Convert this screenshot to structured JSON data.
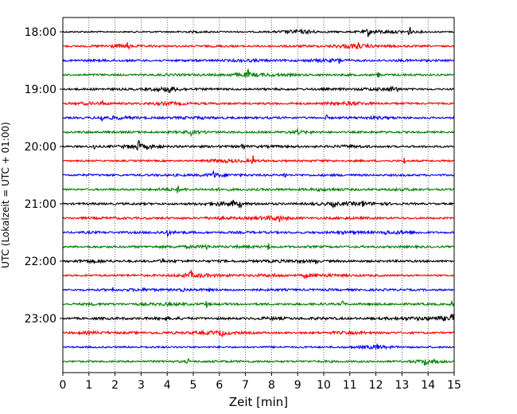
{
  "chart_data": {
    "type": "line",
    "title": "",
    "xlabel": "Zeit  [min]",
    "ylabel": "UTC (Lokalzeit = UTC + 01:00)",
    "xlim": [
      0,
      15
    ],
    "x_ticks": [
      "0",
      "1",
      "2",
      "3",
      "4",
      "5",
      "6",
      "7",
      "8",
      "9",
      "10",
      "11",
      "12",
      "13",
      "14",
      "15"
    ],
    "y_tick_labels": [
      "18:00",
      "19:00",
      "20:00",
      "21:00",
      "22:00",
      "23:00"
    ],
    "trace_interval_min": 15,
    "grid": "vertical dotted at each minute",
    "legend": "none",
    "color_cycle": [
      "#000000",
      "#ff0000",
      "#0000ff",
      "#008000"
    ],
    "series": [
      {
        "start": "18:00",
        "values": [
          0.12,
          0.15,
          0.1,
          0.14,
          0.12,
          0.2,
          0.14,
          0.12,
          0.15,
          0.4,
          0.18,
          0.14,
          0.35,
          0.25,
          0.15,
          0.12
        ],
        "spikes": [
          [
            9.5,
            0.5
          ],
          [
            11.7,
            0.7
          ],
          [
            13.3,
            1.0
          ]
        ]
      },
      {
        "start": "18:15",
        "values": [
          0.14,
          0.16,
          0.35,
          0.2,
          0.18,
          0.15,
          0.2,
          0.16,
          0.18,
          0.2,
          0.18,
          0.45,
          0.25,
          0.2,
          0.15,
          0.14
        ],
        "spikes": [
          [
            2.5,
            0.7
          ],
          [
            11.3,
            0.5
          ]
        ]
      },
      {
        "start": "18:30",
        "values": [
          0.15,
          0.2,
          0.22,
          0.18,
          0.16,
          0.2,
          0.18,
          0.3,
          0.2,
          0.18,
          0.35,
          0.2,
          0.18,
          0.22,
          0.2,
          0.16
        ],
        "spikes": [
          [
            10.6,
            0.5
          ]
        ]
      },
      {
        "start": "18:45",
        "values": [
          0.14,
          0.18,
          0.16,
          0.15,
          0.22,
          0.18,
          0.2,
          0.4,
          0.3,
          0.2,
          0.18,
          0.2,
          0.16,
          0.2,
          0.18,
          0.15
        ],
        "spikes": [
          [
            7.1,
            0.6
          ],
          [
            12.1,
            0.5
          ]
        ]
      },
      {
        "start": "19:00",
        "values": [
          0.15,
          0.18,
          0.2,
          0.18,
          0.45,
          0.2,
          0.18,
          0.16,
          0.2,
          0.18,
          0.2,
          0.2,
          0.3,
          0.18,
          0.16,
          0.15
        ],
        "spikes": [
          [
            4.1,
            0.6
          ],
          [
            12.6,
            0.6
          ],
          [
            12.8,
            0.5
          ]
        ]
      },
      {
        "start": "19:15",
        "values": [
          0.15,
          0.3,
          0.2,
          0.18,
          0.35,
          0.2,
          0.18,
          0.16,
          0.2,
          0.18,
          0.2,
          0.38,
          0.2,
          0.18,
          0.16,
          0.15
        ],
        "spikes": [
          [
            1.5,
            0.4
          ]
        ]
      },
      {
        "start": "19:30",
        "values": [
          0.14,
          0.18,
          0.35,
          0.2,
          0.18,
          0.3,
          0.2,
          0.16,
          0.2,
          0.18,
          0.16,
          0.2,
          0.3,
          0.18,
          0.16,
          0.15
        ],
        "spikes": [
          [
            1.5,
            0.7
          ],
          [
            10.1,
            0.4
          ]
        ]
      },
      {
        "start": "19:45",
        "values": [
          0.14,
          0.22,
          0.18,
          0.2,
          0.18,
          0.3,
          0.2,
          0.18,
          0.16,
          0.3,
          0.18,
          0.16,
          0.2,
          0.18,
          0.16,
          0.15
        ],
        "spikes": [
          [
            4.9,
            0.4
          ],
          [
            9.0,
            0.5
          ]
        ]
      },
      {
        "start": "20:00",
        "values": [
          0.14,
          0.18,
          0.2,
          0.5,
          0.18,
          0.2,
          0.2,
          0.2,
          0.22,
          0.2,
          0.18,
          0.3,
          0.18,
          0.16,
          0.2,
          0.15
        ],
        "spikes": [
          [
            2.9,
            0.7
          ],
          [
            6.9,
            0.8
          ],
          [
            1.2,
            0.5
          ]
        ]
      },
      {
        "start": "20:15",
        "values": [
          0.12,
          0.15,
          0.14,
          0.16,
          0.15,
          0.14,
          0.35,
          0.25,
          0.18,
          0.16,
          0.2,
          0.16,
          0.18,
          0.16,
          0.15,
          0.14
        ],
        "spikes": [
          [
            7.3,
            0.9
          ],
          [
            13.1,
            0.5
          ]
        ]
      },
      {
        "start": "20:30",
        "values": [
          0.14,
          0.2,
          0.16,
          0.18,
          0.2,
          0.2,
          0.35,
          0.2,
          0.18,
          0.16,
          0.2,
          0.2,
          0.16,
          0.18,
          0.16,
          0.15
        ],
        "spikes": [
          [
            5.8,
            0.7
          ],
          [
            8.5,
            0.5
          ]
        ]
      },
      {
        "start": "20:45",
        "values": [
          0.14,
          0.16,
          0.18,
          0.15,
          0.3,
          0.2,
          0.25,
          0.18,
          0.22,
          0.2,
          0.3,
          0.2,
          0.18,
          0.25,
          0.18,
          0.15
        ],
        "spikes": [
          [
            4.4,
            0.5
          ]
        ]
      },
      {
        "start": "21:00",
        "values": [
          0.15,
          0.2,
          0.18,
          0.2,
          0.16,
          0.2,
          0.4,
          0.25,
          0.2,
          0.18,
          0.3,
          0.35,
          0.3,
          0.18,
          0.16,
          0.15
        ],
        "spikes": [
          [
            6.5,
            0.7
          ],
          [
            6.8,
            0.8
          ],
          [
            10.4,
            0.6
          ],
          [
            11.5,
            0.5
          ]
        ]
      },
      {
        "start": "21:15",
        "values": [
          0.15,
          0.2,
          0.22,
          0.18,
          0.2,
          0.18,
          0.3,
          0.2,
          0.45,
          0.2,
          0.18,
          0.25,
          0.2,
          0.18,
          0.16,
          0.15
        ],
        "spikes": [
          [
            8.3,
            0.6
          ]
        ]
      },
      {
        "start": "21:30",
        "values": [
          0.15,
          0.22,
          0.18,
          0.2,
          0.3,
          0.2,
          0.18,
          0.22,
          0.2,
          0.18,
          0.2,
          0.3,
          0.2,
          0.35,
          0.18,
          0.15
        ],
        "spikes": [
          [
            4.0,
            0.5
          ],
          [
            12.4,
            0.5
          ]
        ]
      },
      {
        "start": "21:45",
        "values": [
          0.15,
          0.2,
          0.18,
          0.2,
          0.22,
          0.3,
          0.2,
          0.25,
          0.2,
          0.18,
          0.2,
          0.18,
          0.2,
          0.2,
          0.18,
          0.15
        ],
        "spikes": [
          [
            5.5,
            0.5
          ],
          [
            7.9,
            0.6
          ]
        ]
      },
      {
        "start": "22:00",
        "values": [
          0.14,
          0.35,
          0.2,
          0.18,
          0.25,
          0.2,
          0.2,
          0.2,
          0.25,
          0.3,
          0.18,
          0.2,
          0.18,
          0.2,
          0.18,
          0.15
        ],
        "spikes": [
          [
            3.8,
            0.5
          ],
          [
            9.7,
            0.6
          ]
        ]
      },
      {
        "start": "22:15",
        "values": [
          0.14,
          0.16,
          0.18,
          0.2,
          0.18,
          0.45,
          0.25,
          0.2,
          0.3,
          0.18,
          0.35,
          0.2,
          0.18,
          0.16,
          0.15,
          0.14
        ],
        "spikes": [
          [
            9.3,
            0.8
          ],
          [
            4.9,
            0.5
          ]
        ]
      },
      {
        "start": "22:30",
        "values": [
          0.14,
          0.18,
          0.2,
          0.3,
          0.2,
          0.25,
          0.2,
          0.18,
          0.2,
          0.18,
          0.2,
          0.18,
          0.2,
          0.18,
          0.16,
          0.15
        ],
        "spikes": [
          [
            1.9,
            0.5
          ],
          [
            4.6,
            0.5
          ]
        ]
      },
      {
        "start": "22:45",
        "values": [
          0.14,
          0.25,
          0.2,
          0.22,
          0.3,
          0.2,
          0.2,
          0.18,
          0.2,
          0.18,
          0.2,
          0.18,
          0.2,
          0.18,
          0.2,
          0.15
        ],
        "spikes": [
          [
            5.5,
            0.6
          ],
          [
            10.7,
            0.6
          ],
          [
            14.9,
            0.5
          ]
        ]
      },
      {
        "start": "23:00",
        "values": [
          0.15,
          0.2,
          0.22,
          0.2,
          0.3,
          0.2,
          0.2,
          0.18,
          0.3,
          0.2,
          0.25,
          0.18,
          0.2,
          0.3,
          0.35,
          0.5
        ],
        "spikes": [
          [
            14.95,
            0.7
          ]
        ]
      },
      {
        "start": "23:15",
        "values": [
          0.14,
          0.3,
          0.2,
          0.2,
          0.22,
          0.25,
          0.4,
          0.2,
          0.18,
          0.16,
          0.2,
          0.3,
          0.2,
          0.18,
          0.16,
          0.15
        ],
        "spikes": [
          [
            6.1,
            0.6
          ]
        ]
      },
      {
        "start": "23:30",
        "values": [
          0.12,
          0.15,
          0.14,
          0.16,
          0.15,
          0.14,
          0.15,
          0.14,
          0.16,
          0.15,
          0.14,
          0.2,
          0.35,
          0.16,
          0.15,
          0.14
        ],
        "spikes": [
          [
            12.1,
            0.5
          ]
        ]
      },
      {
        "start": "23:45",
        "values": [
          0.14,
          0.16,
          0.15,
          0.16,
          0.2,
          0.18,
          0.2,
          0.2,
          0.18,
          0.16,
          0.2,
          0.16,
          0.18,
          0.16,
          0.4,
          0.15
        ],
        "spikes": [
          [
            13.9,
            0.6
          ],
          [
            4.8,
            0.4
          ]
        ]
      }
    ]
  }
}
